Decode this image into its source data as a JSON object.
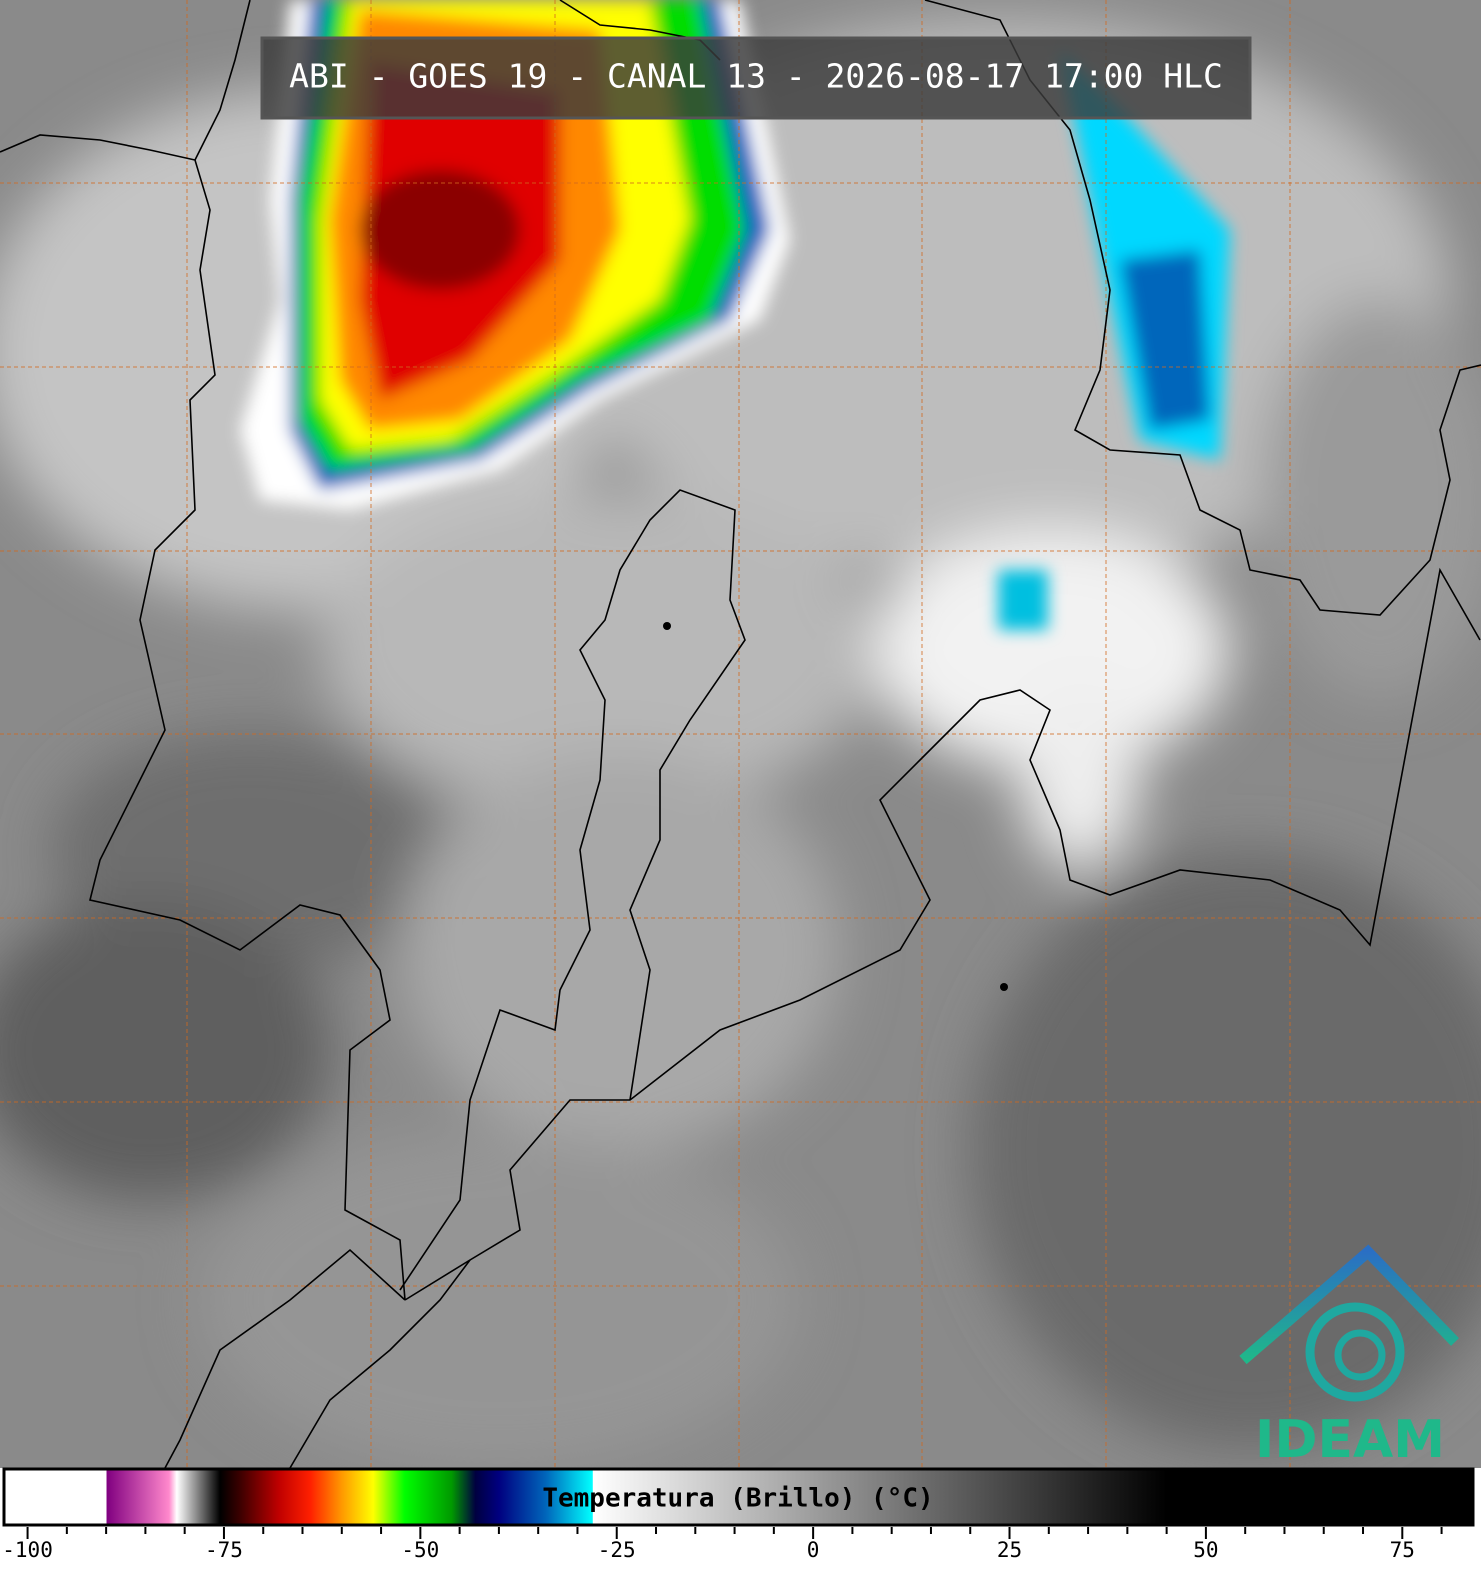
{
  "title": "ABI - GOES 19 - CANAL 13 - 2026-08-17 17:00 HLC",
  "colorbar": {
    "label": "Temperatura (Brillo) (°C)",
    "xlim": [
      -103,
      84
    ],
    "xticks": [
      -100,
      -75,
      -50,
      -25,
      0,
      25,
      50,
      75
    ],
    "xminorticks": [
      -95,
      -90,
      -85,
      -80,
      -70,
      -65,
      -60,
      -55,
      -45,
      -40,
      -35,
      -30,
      -20,
      -15,
      -10,
      -5,
      5,
      10,
      15,
      20,
      30,
      35,
      40,
      45,
      55,
      60,
      65,
      70,
      80
    ],
    "colors": [
      {
        "value": -103,
        "color": "#ffffff"
      },
      {
        "value": -90,
        "color": "#ffffff"
      },
      {
        "value": -89.9,
        "color": "#800080"
      },
      {
        "value": -82,
        "color": "#ff88cc"
      },
      {
        "value": -81,
        "color": "#ffffff"
      },
      {
        "value": -75.5,
        "color": "#000000"
      },
      {
        "value": -73,
        "color": "#3a0000"
      },
      {
        "value": -68,
        "color": "#c00000"
      },
      {
        "value": -64,
        "color": "#ff2000"
      },
      {
        "value": -60,
        "color": "#ff9900"
      },
      {
        "value": -56,
        "color": "#ffff00"
      },
      {
        "value": -52,
        "color": "#00ff00"
      },
      {
        "value": -46,
        "color": "#009900"
      },
      {
        "value": -43,
        "color": "#000040"
      },
      {
        "value": -40,
        "color": "#000080"
      },
      {
        "value": -34,
        "color": "#0066bb"
      },
      {
        "value": -28.1,
        "color": "#00ffff"
      },
      {
        "value": -28,
        "color": "#ffffff"
      },
      {
        "value": 45,
        "color": "#000000"
      },
      {
        "value": 84,
        "color": "#000000"
      }
    ]
  },
  "logo": {
    "text": "IDEAM"
  }
}
